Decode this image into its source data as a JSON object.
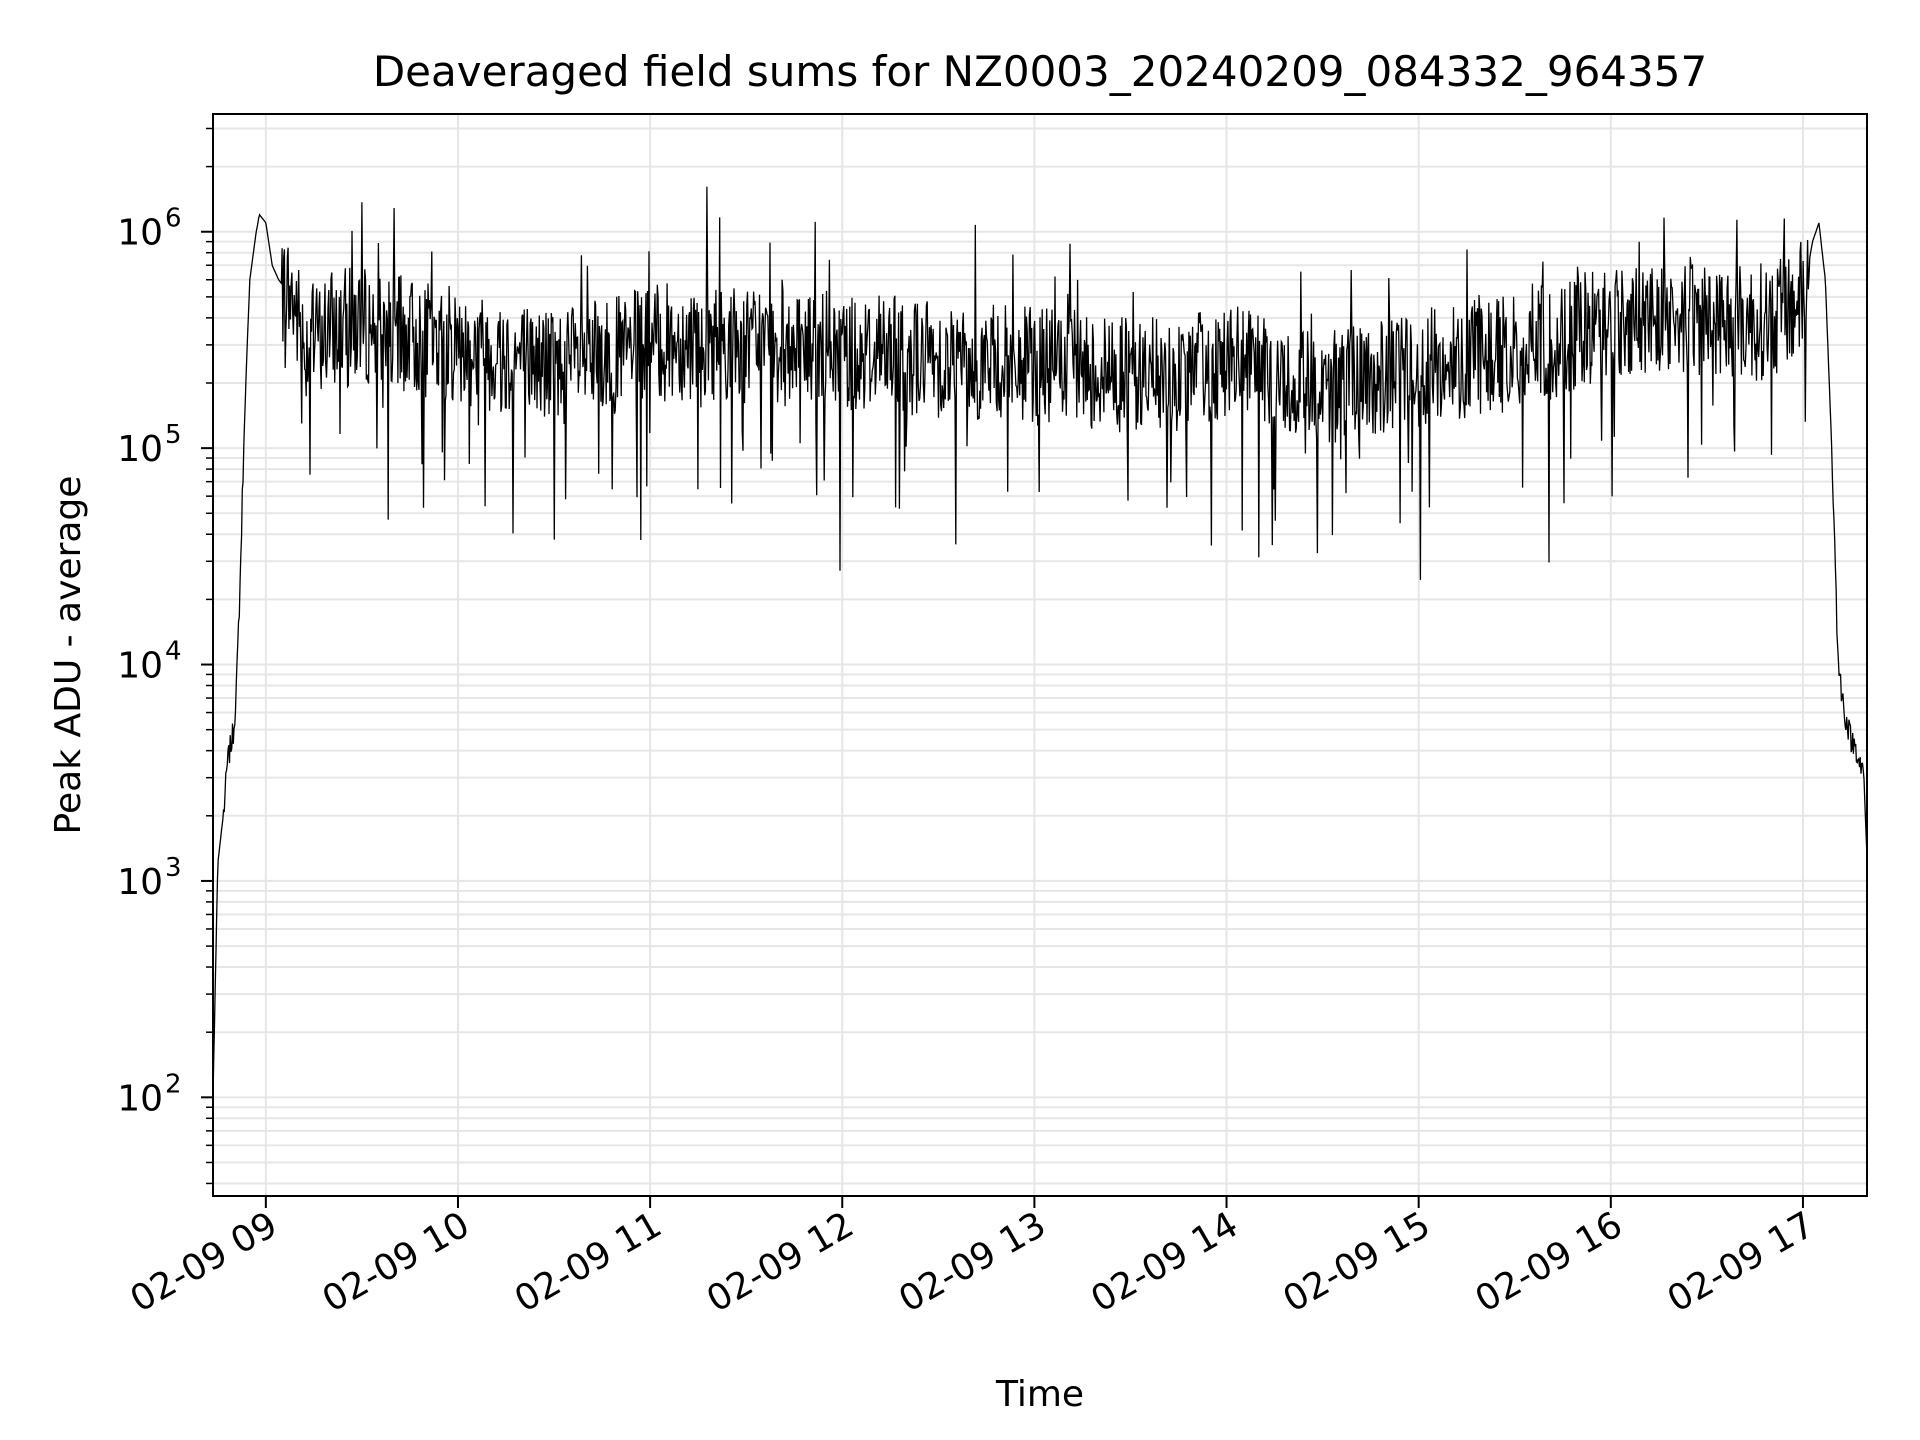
{
  "chart_data": {
    "type": "line",
    "title": "Deaveraged field sums for NZ0003_20240209_084332_964357",
    "xlabel": "Time",
    "ylabel": "Peak ADU - average",
    "y_scale": "log",
    "ylim": [
      35,
      3500000
    ],
    "xlim": [
      "2024-02-09 08:43:30",
      "2024-02-09 17:20:00"
    ],
    "x_ticks": [
      {
        "value": "2024-02-09 09:00",
        "label": "02-09 09"
      },
      {
        "value": "2024-02-09 10:00",
        "label": "02-09 10"
      },
      {
        "value": "2024-02-09 11:00",
        "label": "02-09 11"
      },
      {
        "value": "2024-02-09 12:00",
        "label": "02-09 12"
      },
      {
        "value": "2024-02-09 13:00",
        "label": "02-09 13"
      },
      {
        "value": "2024-02-09 14:00",
        "label": "02-09 14"
      },
      {
        "value": "2024-02-09 15:00",
        "label": "02-09 15"
      },
      {
        "value": "2024-02-09 16:00",
        "label": "02-09 16"
      },
      {
        "value": "2024-02-09 17:00",
        "label": "02-09 17"
      }
    ],
    "y_ticks": [
      {
        "value": 100,
        "base": "10",
        "exp": "2"
      },
      {
        "value": 1000,
        "base": "10",
        "exp": "3"
      },
      {
        "value": 10000,
        "base": "10",
        "exp": "4"
      },
      {
        "value": 100000,
        "base": "10",
        "exp": "5"
      },
      {
        "value": 1000000,
        "base": "10",
        "exp": "6"
      }
    ],
    "grid": true,
    "line_color": "#000000",
    "grid_color": "#e6e6e6",
    "series": [
      {
        "name": "",
        "x": [
          "2024-02-09 08:43:30",
          "2024-02-09 08:45:00",
          "2024-02-09 08:47:00",
          "2024-02-09 08:48:00",
          "2024-02-09 08:50:00",
          "2024-02-09 08:51:00",
          "2024-02-09 08:52:00",
          "2024-02-09 08:53:00",
          "2024-02-09 08:54:00",
          "2024-02-09 08:55:00",
          "2024-02-09 08:57:00",
          "2024-02-09 08:58:00",
          "2024-02-09 09:00:00",
          "2024-02-09 09:02:00",
          "2024-02-09 09:04:00",
          "2024-02-09 09:06:00",
          "2024-02-09 09:08:00",
          "2024-02-09 09:10:00",
          "2024-02-09 09:12:00",
          "2024-02-09 09:20:00",
          "2024-02-09 09:30:00",
          "2024-02-09 09:40:00",
          "2024-02-09 09:50:00",
          "2024-02-09 10:00:00",
          "2024-02-09 10:10:00",
          "2024-02-09 10:20:00",
          "2024-02-09 10:30:00",
          "2024-02-09 10:40:00",
          "2024-02-09 10:50:00",
          "2024-02-09 11:00:00",
          "2024-02-09 11:15:00",
          "2024-02-09 11:30:00",
          "2024-02-09 11:45:00",
          "2024-02-09 12:00:00",
          "2024-02-09 12:15:00",
          "2024-02-09 12:30:00",
          "2024-02-09 12:45:00",
          "2024-02-09 13:00:00",
          "2024-02-09 13:15:00",
          "2024-02-09 13:30:00",
          "2024-02-09 13:45:00",
          "2024-02-09 14:00:00",
          "2024-02-09 14:15:00",
          "2024-02-09 14:30:00",
          "2024-02-09 14:45:00",
          "2024-02-09 15:00:00",
          "2024-02-09 15:15:00",
          "2024-02-09 15:30:00",
          "2024-02-09 15:45:00",
          "2024-02-09 16:00:00",
          "2024-02-09 16:15:00",
          "2024-02-09 16:30:00",
          "2024-02-09 16:45:00",
          "2024-02-09 16:55:00",
          "2024-02-09 17:00:00",
          "2024-02-09 17:03:00",
          "2024-02-09 17:05:00",
          "2024-02-09 17:07:00",
          "2024-02-09 17:09:00",
          "2024-02-09 17:11:00",
          "2024-02-09 17:13:00",
          "2024-02-09 17:15:00",
          "2024-02-09 17:17:00",
          "2024-02-09 17:19:00",
          "2024-02-09 17:20:00"
        ],
        "values": [
          100,
          1200,
          2200,
          3500,
          5000,
          9000,
          25000,
          90000,
          250000,
          600000,
          1000000,
          1200000,
          1100000,
          700000,
          600000,
          550000,
          500000,
          400000,
          300000,
          350000,
          380000,
          330000,
          320000,
          300000,
          280000,
          260000,
          240000,
          250000,
          270000,
          300000,
          320000,
          300000,
          290000,
          280000,
          270000,
          260000,
          250000,
          240000,
          230000,
          220000,
          210000,
          260000,
          200000,
          190000,
          200000,
          230000,
          260000,
          280000,
          320000,
          380000,
          420000,
          400000,
          380000,
          420000,
          500000,
          900000,
          1100000,
          600000,
          100000,
          10000,
          6000,
          4500,
          4000,
          3000,
          1300
        ]
      }
    ],
    "annotations": []
  }
}
